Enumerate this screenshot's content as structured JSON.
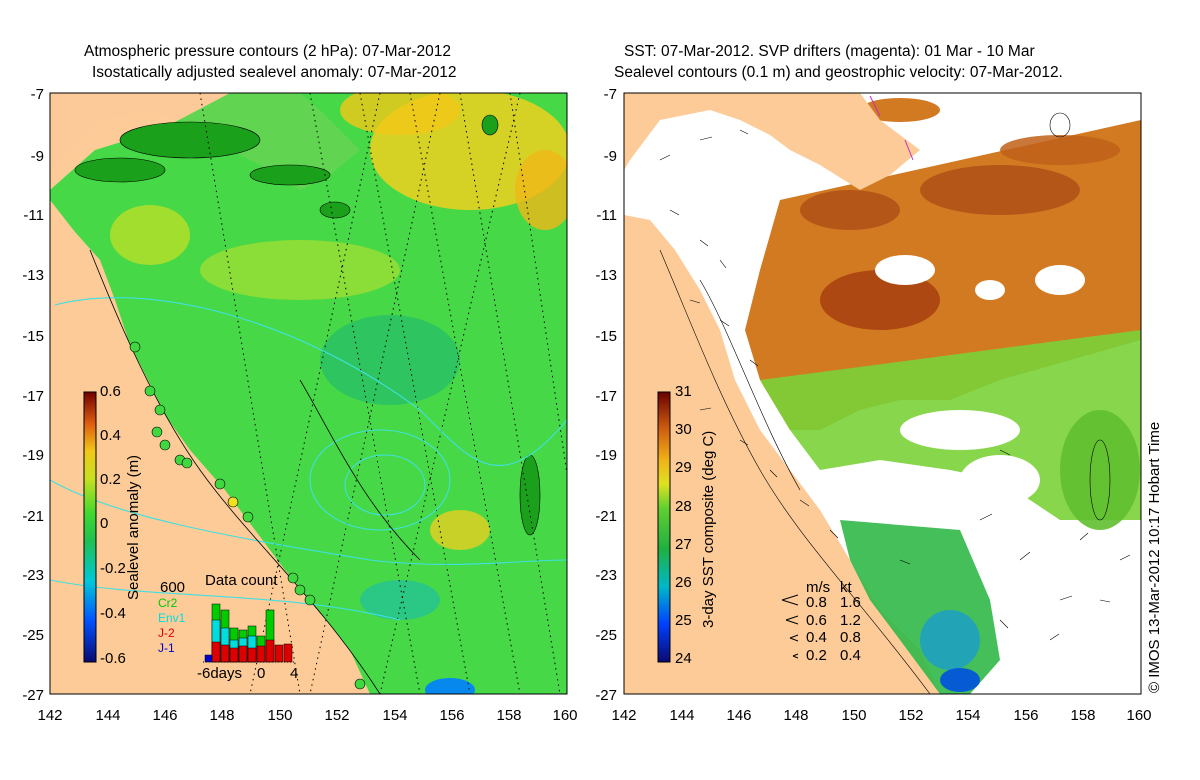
{
  "left_panel": {
    "title_line1": "Atmospheric pressure contours (2 hPa): 07-Mar-2012",
    "title_line2": "Isostatically adjusted sealevel anomaly: 07-Mar-2012",
    "y_ticks": [
      "-7",
      "-9",
      "-11",
      "-13",
      "-15",
      "-17",
      "-19",
      "-21",
      "-23",
      "-25",
      "-27"
    ],
    "x_ticks": [
      "142",
      "144",
      "146",
      "148",
      "150",
      "152",
      "154",
      "156",
      "158",
      "160"
    ],
    "colorbar": {
      "label": "Sealevel anomaly (m)",
      "ticks": [
        "0.6",
        "0.4",
        "0.2",
        "0",
        "-0.2",
        "-0.4",
        "-0.6"
      ]
    },
    "data_count": {
      "title": "Data count",
      "max_label": "600",
      "legend": [
        {
          "name": "Cr2",
          "color": "#00cc00"
        },
        {
          "name": "Env1",
          "color": "#00dddd"
        },
        {
          "name": "J-2",
          "color": "#dd0000"
        },
        {
          "name": "J-1",
          "color": "#0000cc"
        }
      ],
      "x_labels": [
        "-6days",
        "0",
        "4"
      ]
    }
  },
  "right_panel": {
    "title_line1": "SST: 07-Mar-2012. SVP drifters (magenta): 01 Mar - 10 Mar",
    "title_line2": "Sealevel contours (0.1 m) and geostrophic velocity: 07-Mar-2012.",
    "y_ticks": [
      "-7",
      "-9",
      "-11",
      "-13",
      "-15",
      "-17",
      "-19",
      "-21",
      "-23",
      "-25",
      "-27"
    ],
    "x_ticks": [
      "142",
      "144",
      "146",
      "148",
      "150",
      "152",
      "154",
      "156",
      "158",
      "160"
    ],
    "colorbar": {
      "label": "3-day SST composite (deg C)",
      "ticks": [
        "31",
        "30",
        "29",
        "28",
        "27",
        "26",
        "25",
        "24"
      ]
    },
    "velocity_legend": {
      "header_ms": "m/s",
      "header_kt": "kt",
      "rows": [
        {
          "ms": "0.8",
          "kt": "1.6"
        },
        {
          "ms": "0.6",
          "kt": "1.2"
        },
        {
          "ms": "0.4",
          "kt": "0.8"
        },
        {
          "ms": "0.2",
          "kt": "0.4"
        }
      ]
    }
  },
  "credit": "© IMOS 13-Mar-2012 10:17 Hobart Time",
  "colors": {
    "land": "#fccb98",
    "ocean_green": "#46d846",
    "sst_orange": "#d27a22"
  }
}
